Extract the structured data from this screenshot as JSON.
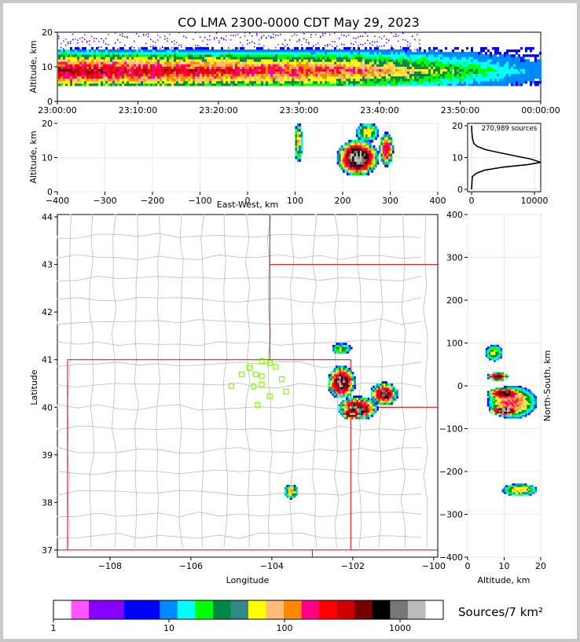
{
  "title": "CO LMA 2300-0000 CDT May 29, 2023",
  "colors": {
    "frame_bg": "#c8c8c8",
    "state_border": "#e00000",
    "county_border": "#bbbbbb",
    "station_marker": "#7cff00"
  },
  "chart_data": [
    {
      "type": "heatmap",
      "panel": "time-altitude",
      "ylabel": "Altitude, km",
      "ylim": [
        0,
        20
      ],
      "x_ticks": [
        "23:00:00",
        "23:10:00",
        "23:20:00",
        "23:30:00",
        "23:40:00",
        "23:50:00",
        "00:00:00"
      ],
      "y_ticks": [
        "0",
        "10",
        "20"
      ],
      "density_band_km": [
        5,
        15
      ]
    },
    {
      "type": "heatmap",
      "panel": "east-west-altitude",
      "xlabel": "East-West, km",
      "ylabel": "Altitude, km",
      "xlim": [
        -400,
        400
      ],
      "ylim": [
        0,
        20
      ],
      "x_ticks": [
        "−400",
        "−300",
        "−200",
        "−100",
        "0",
        "100",
        "200",
        "300",
        "400"
      ],
      "y_ticks": [
        "0",
        "10",
        "20"
      ]
    },
    {
      "type": "line",
      "panel": "altitude-histogram",
      "annotation": "270,989 sources",
      "x_ticks": [
        "0",
        "10000"
      ],
      "y_ticks": [
        "0",
        "10",
        "20"
      ],
      "points": [
        [
          0,
          0
        ],
        [
          120,
          4
        ],
        [
          700,
          5
        ],
        [
          2000,
          6
        ],
        [
          5000,
          7
        ],
        [
          9000,
          7.8
        ],
        [
          11000,
          8.5
        ],
        [
          9500,
          9.5
        ],
        [
          7000,
          10.5
        ],
        [
          4500,
          11.5
        ],
        [
          2200,
          12.5
        ],
        [
          900,
          13.5
        ],
        [
          350,
          14.5
        ],
        [
          150,
          16
        ],
        [
          50,
          18
        ],
        [
          10,
          20
        ]
      ]
    },
    {
      "type": "heatmap",
      "panel": "plan-view",
      "xlabel": "Longitude",
      "ylabel": "Latitude",
      "xlim": [
        -109.3,
        -99.9
      ],
      "ylim": [
        36.85,
        44.05
      ],
      "x_ticks": [
        "−108",
        "−106",
        "−104",
        "−102",
        "−100"
      ],
      "y_ticks": [
        "37",
        "38",
        "39",
        "40",
        "41",
        "42",
        "43",
        "44"
      ],
      "stations": [
        [
          -104.55,
          40.83
        ],
        [
          -104.25,
          40.97
        ],
        [
          -104.05,
          40.93
        ],
        [
          -103.9,
          40.85
        ],
        [
          -104.75,
          40.69
        ],
        [
          -104.4,
          40.69
        ],
        [
          -104.25,
          40.65
        ],
        [
          -103.75,
          40.59
        ],
        [
          -105.0,
          40.45
        ],
        [
          -104.45,
          40.44
        ],
        [
          -104.25,
          40.48
        ],
        [
          -103.65,
          40.33
        ],
        [
          -104.05,
          40.23
        ],
        [
          -104.35,
          40.05
        ]
      ],
      "storm_cells": [
        [
          -102.3,
          40.55
        ],
        [
          -101.25,
          40.3
        ],
        [
          -101.9,
          40.0
        ],
        [
          -102.05,
          39.9
        ],
        [
          -102.3,
          41.25
        ],
        [
          -103.55,
          38.25
        ]
      ]
    },
    {
      "type": "heatmap",
      "panel": "altitude-north-south",
      "xlabel": "Altitude, km",
      "ylabel": "North-South, km",
      "xlim": [
        0,
        20
      ],
      "ylim": [
        -400,
        400
      ],
      "x_ticks": [
        "0",
        "10",
        "20"
      ],
      "y_ticks": [
        "400",
        "300",
        "200",
        "100",
        "0",
        "−100",
        "−200",
        "−300",
        "−400"
      ]
    },
    {
      "type": "colorbar",
      "label": "Sources/7 km²",
      "ticks": [
        "1",
        "10",
        "100",
        "1000"
      ],
      "colors": [
        "#ffffff",
        "#ff55ff",
        "#8800ff",
        "#8800ff",
        "#0000ff",
        "#0000ff",
        "#0088ff",
        "#00ffff",
        "#00ff00",
        "#008844",
        "#338888",
        "#ffff00",
        "#ffbb77",
        "#ff8800",
        "#ff0088",
        "#ff0000",
        "#cc0000",
        "#770000",
        "#000000",
        "#777777",
        "#bbbbbb",
        "#ffffff"
      ]
    }
  ]
}
